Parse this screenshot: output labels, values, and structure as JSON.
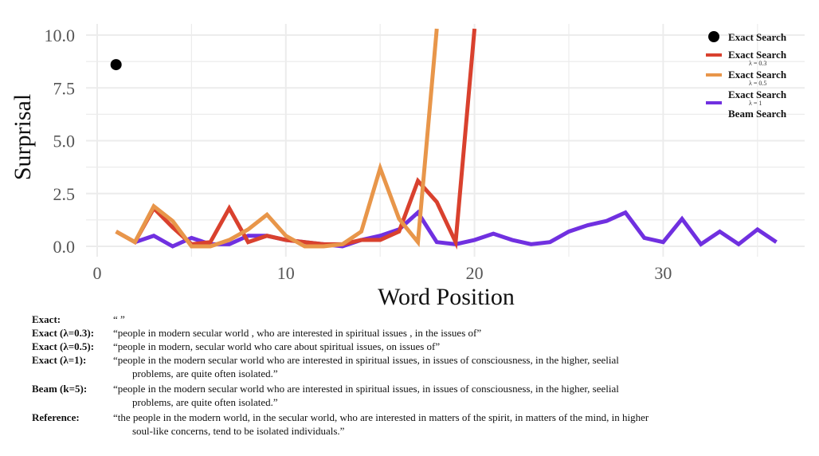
{
  "chart_data": {
    "type": "line",
    "title": "",
    "xlabel": "Word Position",
    "ylabel": "Surprisal",
    "xlim": [
      0,
      37
    ],
    "ylim": [
      0,
      10.3
    ],
    "x_ticks": [
      0,
      10,
      20,
      30
    ],
    "y_ticks": [
      "0.0",
      "2.5",
      "5.0",
      "7.5",
      "10.0"
    ],
    "grid": true,
    "legend_position": "top-right",
    "series": [
      {
        "name": "Exact Search",
        "type": "scatter",
        "color": "#000000",
        "x": [
          1
        ],
        "values": [
          8.6
        ]
      },
      {
        "name": "Exact Search λ = 0.3",
        "type": "line",
        "color": "#d9412e",
        "x": [
          1,
          2,
          3,
          4,
          5,
          6,
          7,
          8,
          9,
          10,
          11,
          12,
          13,
          14,
          15,
          16,
          17,
          18,
          19,
          20
        ],
        "values": [
          0.7,
          0.2,
          1.8,
          0.9,
          0.1,
          0.2,
          1.8,
          0.2,
          0.5,
          0.3,
          0.2,
          0.1,
          0.1,
          0.3,
          0.3,
          0.7,
          3.1,
          2.1,
          0.2,
          10.3
        ]
      },
      {
        "name": "Exact Search λ = 0.5",
        "type": "line",
        "color": "#e8964a",
        "x": [
          1,
          2,
          3,
          4,
          5,
          6,
          7,
          8,
          9,
          10,
          11,
          12,
          13,
          14,
          15,
          16,
          17,
          18
        ],
        "values": [
          0.7,
          0.2,
          1.9,
          1.2,
          0.0,
          0.0,
          0.3,
          0.8,
          1.5,
          0.5,
          0.0,
          0.0,
          0.1,
          0.7,
          3.7,
          1.3,
          0.2,
          10.3
        ]
      },
      {
        "name": "Exact Search λ = 1 / Beam Search",
        "type": "line",
        "color": "#7030e0",
        "x": [
          2,
          3,
          4,
          5,
          6,
          7,
          8,
          9,
          10,
          11,
          12,
          13,
          14,
          15,
          16,
          17,
          18,
          19,
          20,
          21,
          22,
          23,
          24,
          25,
          26,
          27,
          28,
          29,
          30,
          31,
          32,
          33,
          34,
          35,
          36
        ],
        "values": [
          0.2,
          0.5,
          0.0,
          0.4,
          0.1,
          0.1,
          0.5,
          0.5,
          0.3,
          0.2,
          0.1,
          0.0,
          0.3,
          0.5,
          0.8,
          1.6,
          0.2,
          0.1,
          0.3,
          0.6,
          0.3,
          0.1,
          0.2,
          0.7,
          1.0,
          1.2,
          1.6,
          0.4,
          0.2,
          1.3,
          0.1,
          0.7,
          0.1,
          0.8,
          0.2
        ]
      }
    ],
    "legend": [
      {
        "label": "Exact Search",
        "sub": "",
        "swatch": "dot",
        "color": "#000000"
      },
      {
        "label": "Exact Search",
        "sub": "λ = 0.3",
        "swatch": "line",
        "color": "#d9412e"
      },
      {
        "label": "Exact Search",
        "sub": "λ = 0.5",
        "swatch": "line",
        "color": "#e8964a"
      },
      {
        "label": "Exact Search",
        "sub": "λ = 1",
        "label2": "Beam Search",
        "swatch": "line",
        "color": "#7030e0"
      }
    ]
  },
  "examples": [
    {
      "label": "Exact:",
      "lines": [
        "“ ”"
      ]
    },
    {
      "label": "Exact (λ=0.3):",
      "lines": [
        "“people in modern secular world , who are interested in spiritual issues , in the issues of”"
      ]
    },
    {
      "label": "Exact (λ=0.5):",
      "lines": [
        "“people in modern, secular world who care about spiritual issues, on issues of”"
      ]
    },
    {
      "label": "Exact (λ=1):",
      "lines": [
        "“people in the modern secular world who are interested in spiritual issues, in issues of consciousness, in the higher, seelial",
        "problems, are quite often isolated.”"
      ]
    },
    {
      "label": "Beam (k=5):",
      "lines": [
        "“people in the modern secular world who are interested in spiritual issues, in issues of consciousness, in the higher, seelial",
        "problems, are quite often isolated.”"
      ]
    },
    {
      "label": "Reference:",
      "lines": [
        "“the people in the modern world, in the secular world, who are interested in matters of the spirit, in matters of the mind, in higher",
        "soul-like concerns, tend to be isolated individuals.”"
      ]
    }
  ]
}
